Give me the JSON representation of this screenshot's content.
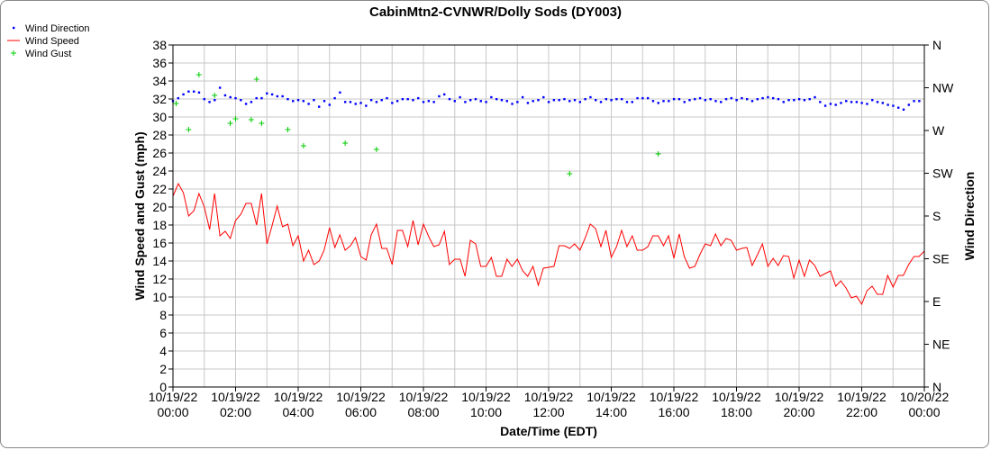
{
  "chart_data": {
    "type": "line",
    "title": "CabinMtn2-CVNWR/Dolly Sods (DY003)",
    "xlabel": "Date/Time (EDT)",
    "ylabel": "Wind Speed and Gust (mph)",
    "y2label": "Wind Direction",
    "x_range_hours": [
      0,
      24
    ],
    "ylim": [
      0,
      38
    ],
    "y_ticks": [
      0,
      2,
      4,
      6,
      8,
      10,
      12,
      14,
      16,
      18,
      20,
      22,
      24,
      26,
      28,
      30,
      32,
      34,
      36,
      38
    ],
    "y2_ticks": [
      "N",
      "NE",
      "E",
      "SE",
      "S",
      "SW",
      "W",
      "NW",
      "N"
    ],
    "x_ticks": [
      {
        "hour": 0,
        "date": "10/19/22",
        "time": "00:00"
      },
      {
        "hour": 2,
        "date": "10/19/22",
        "time": "02:00"
      },
      {
        "hour": 4,
        "date": "10/19/22",
        "time": "04:00"
      },
      {
        "hour": 6,
        "date": "10/19/22",
        "time": "06:00"
      },
      {
        "hour": 8,
        "date": "10/19/22",
        "time": "08:00"
      },
      {
        "hour": 10,
        "date": "10/19/22",
        "time": "10:00"
      },
      {
        "hour": 12,
        "date": "10/19/22",
        "time": "12:00"
      },
      {
        "hour": 14,
        "date": "10/19/22",
        "time": "14:00"
      },
      {
        "hour": 16,
        "date": "10/19/22",
        "time": "16:00"
      },
      {
        "hour": 18,
        "date": "10/19/22",
        "time": "18:00"
      },
      {
        "hour": 20,
        "date": "10/19/22",
        "time": "20:00"
      },
      {
        "hour": 22,
        "date": "10/19/22",
        "time": "22:00"
      },
      {
        "hour": 24,
        "date": "10/20/22",
        "time": "00:00"
      }
    ],
    "grid": true,
    "legend_position": "top-left",
    "colors": {
      "direction": "#0000ff",
      "speed": "#ff0000",
      "gust": "#00cc00"
    },
    "legend": [
      "Wind Direction",
      "Wind Speed",
      "Wind Gust"
    ],
    "series": [
      {
        "name": "Wind Speed",
        "type": "line",
        "x": [
          0,
          0.17,
          0.33,
          0.5,
          0.67,
          0.83,
          1,
          1.17,
          1.33,
          1.5,
          1.67,
          1.83,
          2,
          2.17,
          2.33,
          2.5,
          2.67,
          2.83,
          3,
          3.17,
          3.33,
          3.5,
          3.67,
          3.83,
          4,
          4.17,
          4.33,
          4.5,
          4.67,
          4.83,
          5,
          5.17,
          5.33,
          5.5,
          5.67,
          5.83,
          6,
          6.17,
          6.33,
          6.5,
          6.67,
          6.83,
          7,
          7.17,
          7.33,
          7.5,
          7.67,
          7.83,
          8,
          8.17,
          8.33,
          8.5,
          8.67,
          8.83,
          9,
          9.17,
          9.33,
          9.5,
          9.67,
          9.83,
          10,
          10.17,
          10.33,
          10.5,
          10.67,
          10.83,
          11,
          11.17,
          11.33,
          11.5,
          11.67,
          11.83,
          12,
          12.17,
          12.33,
          12.5,
          12.67,
          12.83,
          13,
          13.17,
          13.33,
          13.5,
          13.67,
          13.83,
          14,
          14.17,
          14.33,
          14.5,
          14.67,
          14.83,
          15,
          15.17,
          15.33,
          15.5,
          15.67,
          15.83,
          16,
          16.17,
          16.33,
          16.5,
          16.67,
          16.83,
          17,
          17.17,
          17.33,
          17.5,
          17.67,
          17.83,
          18,
          18.17,
          18.33,
          18.5,
          18.67,
          18.83,
          19,
          19.17,
          19.33,
          19.5,
          19.67,
          19.83,
          20,
          20.17,
          20.33,
          20.5,
          20.67,
          20.83,
          21,
          21.17,
          21.33,
          21.5,
          21.67,
          21.83,
          22,
          22.17,
          22.33,
          22.5,
          22.67,
          22.83,
          23,
          23.17,
          23.33,
          23.5,
          23.67,
          23.83,
          24
        ],
        "values": [
          21.2,
          22.6,
          21.6,
          19.0,
          19.6,
          21.5,
          20.0,
          17.5,
          21.5,
          16.8,
          17.3,
          16.5,
          18.5,
          19.2,
          20.4,
          20.4,
          18.0,
          21.5,
          15.9,
          18.0,
          20.1,
          17.8,
          18.1,
          15.7,
          16.8,
          14.0,
          15.2,
          13.6,
          14.0,
          15.2,
          17.7,
          15.5,
          16.9,
          15.2,
          15.7,
          16.6,
          14.5,
          14.1,
          16.9,
          18.1,
          15.4,
          15.4,
          13.6,
          17.4,
          17.4,
          15.6,
          18.5,
          15.8,
          18.1,
          16.7,
          15.6,
          15.8,
          17.3,
          13.6,
          14.2,
          14.2,
          12.3,
          16.3,
          15.9,
          13.4,
          13.4,
          14.4,
          12.3,
          12.3,
          14.2,
          13.4,
          14.2,
          12.9,
          12.3,
          13.4,
          11.3,
          13.2,
          13.3,
          13.4,
          15.7,
          15.7,
          15.4,
          15.9,
          15.2,
          16.6,
          18.1,
          17.6,
          15.6,
          17.4,
          14.4,
          15.6,
          17.4,
          15.6,
          16.8,
          15.2,
          15.2,
          15.6,
          16.8,
          16.8,
          15.7,
          16.8,
          14.3,
          17.0,
          14.5,
          13.2,
          13.4,
          14.7,
          15.9,
          15.7,
          17.0,
          15.7,
          16.5,
          16.3,
          15.2,
          15.4,
          15.5,
          13.5,
          14.7,
          15.9,
          13.4,
          14.3,
          13.5,
          14.6,
          14.5,
          12.1,
          14.1,
          12.3,
          14.1,
          13.5,
          12.3,
          12.6,
          12.9,
          11.2,
          11.8,
          11.0,
          9.9,
          10.1,
          9.2,
          10.7,
          11.2,
          10.3,
          10.3,
          12.4,
          11.1,
          12.4,
          12.4,
          13.6,
          14.5,
          14.5,
          15.1
        ]
      },
      {
        "name": "Wind Gust",
        "type": "scatter",
        "x": [
          0.1,
          0.5,
          0.83,
          1.33,
          1.83,
          2.0,
          2.5,
          2.67,
          2.83,
          3.67,
          4.17,
          5.5,
          6.5,
          12.67,
          15.5
        ],
        "values": [
          31.5,
          28.6,
          34.7,
          32.4,
          29.3,
          29.8,
          29.7,
          34.2,
          29.3,
          28.6,
          26.8,
          27.1,
          26.4,
          23.7,
          25.9
        ]
      },
      {
        "name": "Wind Direction",
        "type": "scatter",
        "axis": "right",
        "x_start": 0,
        "x_step": 0.1667,
        "values_deg": [
          301,
          304,
          308,
          311,
          311,
          310,
          303,
          300,
          302,
          315,
          307,
          305,
          304,
          302,
          298,
          300,
          304,
          304,
          309,
          308,
          306,
          306,
          303,
          301,
          302,
          301,
          298,
          302,
          295,
          301,
          297,
          304,
          310,
          300,
          300,
          298,
          299,
          296,
          302,
          300,
          302,
          304,
          299,
          301,
          303,
          303,
          302,
          304,
          300,
          301,
          300,
          306,
          308,
          303,
          301,
          305,
          300,
          302,
          303,
          301,
          300,
          305,
          303,
          302,
          301,
          298,
          300,
          305,
          299,
          301,
          302,
          305,
          300,
          302,
          302,
          303,
          301,
          302,
          300,
          303,
          305,
          302,
          300,
          303,
          302,
          303,
          303,
          300,
          300,
          304,
          304,
          304,
          301,
          299,
          301,
          301,
          303,
          303,
          300,
          302,
          303,
          304,
          302,
          303,
          301,
          300,
          303,
          304,
          302,
          304,
          303,
          301,
          303,
          304,
          305,
          304,
          303,
          300,
          302,
          302,
          303,
          302,
          303,
          305,
          300,
          296,
          298,
          297,
          299,
          301,
          300,
          300,
          299,
          298,
          302,
          300,
          299,
          297,
          296,
          294,
          292,
          297,
          301,
          301,
          300
        ]
      }
    ]
  }
}
